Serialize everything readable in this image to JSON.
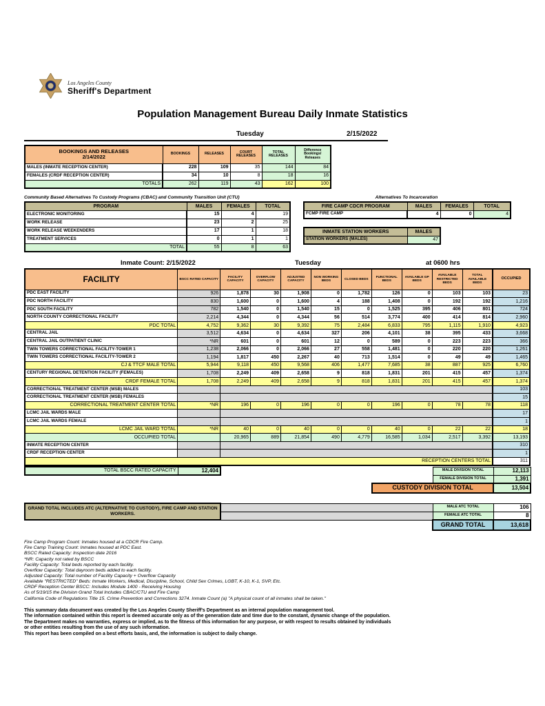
{
  "header": {
    "agency_line1": "Los Angeles County",
    "agency_line2": "Sheriff's Department",
    "title": "Population Management Bureau Daily Inmate Statistics",
    "day": "Tuesday",
    "date": "2/15/2022"
  },
  "bookings_table": {
    "title_line1": "BOOKINGS AND RELEASES",
    "title_line2": "2/14/2022",
    "columns": [
      "BOOKINGS",
      "RELEASES",
      "COURT RELEASES",
      "TOTAL RELEASES",
      "Difference Bookings/ Releases"
    ],
    "rows": [
      {
        "label": "MALES (INMATE RECEPTION CENTER)",
        "values": [
          "228",
          "109",
          "35",
          "144",
          "84"
        ]
      },
      {
        "label": "FEMALES (CRDF RECEPTION CENTER)",
        "values": [
          "34",
          "10",
          "8",
          "18",
          "16"
        ]
      }
    ],
    "totals": {
      "label": "TOTALS",
      "values": [
        "262",
        "119",
        "43",
        "162",
        "100"
      ]
    }
  },
  "cbac_table": {
    "title": "Community Based Alternatives To Custody Programs (CBAC) and Community Transition Unit (CTU)",
    "columns": [
      "PROGRAM",
      "MALES",
      "FEMALES",
      "TOTAL"
    ],
    "rows": [
      {
        "label": "ELECTRONIC MONITORING",
        "values": [
          "15",
          "4",
          "19"
        ]
      },
      {
        "label": "WORK RELEASE",
        "values": [
          "23",
          "2",
          "25"
        ]
      },
      {
        "label": "WORK RELEASE WEEKENDERS",
        "values": [
          "17",
          "1",
          "18"
        ]
      },
      {
        "label": "TREATMENT SERVICES",
        "values": [
          "0",
          "1",
          "1"
        ]
      }
    ],
    "totals": {
      "label": "TOTAL",
      "values": [
        "55",
        "8",
        "63"
      ]
    }
  },
  "alternatives": {
    "title": "Alternatives To Incarceration",
    "fire_camp": {
      "columns": [
        "FIRE CAMP CDCR PROGRAM",
        "MALES",
        "FEMALES",
        "TOTAL"
      ],
      "row_label": "FCMP FIRE CAMP",
      "values": [
        "4",
        "0",
        "4"
      ]
    },
    "station_workers": {
      "header": "INMATE STATION WORKERS",
      "column": "MALES",
      "row_label": "STATION WORKERS (MALES)",
      "value": "47"
    }
  },
  "facility_table": {
    "caption": {
      "count_label": "Inmate Count: 2/15/2022",
      "day": "Tuesday",
      "time": "at 0600 hrs"
    },
    "columns": [
      "FACILITY",
      "BSCC RATED CAPACITY",
      "FACILITY CAPACITY",
      "OVERFLOW CAPACITY",
      "ADJUSTED CAPACITY",
      "NON WORKING BEDS",
      "CLOSED BEDS",
      "FUNCTIONAL BEDS",
      "AVAILABLE GP BEDS",
      "AVAILABLE RESTRICTED BEDS",
      "TOTAL AVAILABLE BEDS",
      "OCCUPIED"
    ],
    "rows": [
      {
        "type": "data",
        "label": "PDC EAST FACILITY",
        "bscc": "926",
        "values": [
          "1,878",
          "30",
          "1,908",
          "0",
          "1,782",
          "126",
          "0",
          "103",
          "103"
        ],
        "occupied": "23"
      },
      {
        "type": "data",
        "label": "PDC NORTH FACILITY",
        "bscc": "830",
        "values": [
          "1,600",
          "0",
          "1,600",
          "4",
          "188",
          "1,408",
          "0",
          "192",
          "192"
        ],
        "occupied": "1,216"
      },
      {
        "type": "data",
        "label": "PDC SOUTH FACILITY",
        "bscc": "782",
        "values": [
          "1,540",
          "0",
          "1,540",
          "15",
          "0",
          "1,525",
          "395",
          "406",
          "801"
        ],
        "occupied": "724"
      },
      {
        "type": "data",
        "label": "NORTH COUNTY CORRECTIONAL FACILITY",
        "bscc": "2,214",
        "values": [
          "4,344",
          "0",
          "4,344",
          "56",
          "514",
          "3,774",
          "400",
          "414",
          "814"
        ],
        "occupied": "2,960"
      },
      {
        "type": "total",
        "label": "PDC TOTAL",
        "bscc": "4,752",
        "values": [
          "9,362",
          "30",
          "9,392",
          "75",
          "2,484",
          "6,833",
          "795",
          "1,115",
          "1,910"
        ],
        "occupied": "4,923"
      },
      {
        "type": "data",
        "label": "CENTRAL JAIL",
        "bscc": "3,512",
        "values": [
          "4,634",
          "0",
          "4,634",
          "327",
          "206",
          "4,101",
          "38",
          "395",
          "433"
        ],
        "occupied": "3,668"
      },
      {
        "type": "data",
        "label": "CENTRAL JAIL OUTPATIENT CLINIC",
        "bscc": "*NR",
        "values": [
          "601",
          "0",
          "601",
          "12",
          "0",
          "589",
          "0",
          "223",
          "223"
        ],
        "occupied": "366"
      },
      {
        "type": "data",
        "label": "TWIN TOWERS CORRECTIONAL FACILITY-TOWER 1",
        "bscc": "1,238",
        "values": [
          "2,066",
          "0",
          "2,066",
          "27",
          "558",
          "1,481",
          "0",
          "220",
          "220"
        ],
        "occupied": "1,261"
      },
      {
        "type": "data",
        "label": "TWIN TOWERS CORRECTIONAL FACILITY-TOWER 2",
        "bscc": "1,194",
        "values": [
          "1,817",
          "450",
          "2,267",
          "40",
          "713",
          "1,514",
          "0",
          "49",
          "49"
        ],
        "occupied": "1,465"
      },
      {
        "type": "total",
        "label": "CJ & TTCF MALE TOTAL",
        "bscc": "5,944",
        "values": [
          "9,118",
          "450",
          "9,568",
          "406",
          "1,477",
          "7,685",
          "38",
          "887",
          "925"
        ],
        "occupied": "6,760"
      },
      {
        "type": "data",
        "label": "CENTURY REGIONAL DETENTION FACILITY (FEMALES)",
        "bscc": "1,708",
        "values": [
          "2,249",
          "409",
          "2,658",
          "9",
          "818",
          "1,831",
          "201",
          "415",
          "457"
        ],
        "occupied": "1,374"
      },
      {
        "type": "total",
        "label": "CRDF FEMALE TOTAL",
        "bscc": "1,708",
        "values": [
          "2,249",
          "409",
          "2,658",
          "9",
          "818",
          "1,831",
          "201",
          "415",
          "457"
        ],
        "occupied": "1,374"
      },
      {
        "type": "grayspan",
        "label": "CORRECTIONAL TREATMENT CENTER (MSB) MALES",
        "occupied": "103"
      },
      {
        "type": "grayspan",
        "label": "CORRECTIONAL TREATMENT CENTER (MSB) FEMALES",
        "occupied": "15"
      },
      {
        "type": "total",
        "label": "CORRECTIONAL TREATMENT CENTER  TOTAL",
        "bscc": "*NR",
        "values": [
          "196",
          "0",
          "196",
          "0",
          "0",
          "196",
          "0",
          "78",
          "78"
        ],
        "occupied": "118"
      },
      {
        "type": "grayspan",
        "label": "LCMC JAIL WARDS MALE",
        "occupied": "17"
      },
      {
        "type": "grayspan",
        "label": "LCMC JAIL WARDS FEMALE",
        "occupied": "1"
      },
      {
        "type": "total",
        "label": "LCMC JAIL WARD TOTAL",
        "bscc": "*NR",
        "values": [
          "40",
          "0",
          "40",
          "0",
          "0",
          "40",
          "0",
          "22",
          "22"
        ],
        "occupied": "18"
      },
      {
        "type": "green",
        "label": "OCCUPIED TOTAL",
        "bscc": "",
        "values": [
          "20,965",
          "889",
          "21,854",
          "490",
          "4,779",
          "16,585",
          "1,034",
          "2,517",
          "3,392"
        ],
        "occupied": "13,193"
      },
      {
        "type": "grayspan",
        "label": "INMATE RECEPTION CENTER",
        "occupied": "310"
      },
      {
        "type": "grayspan",
        "label": "CRDF RECEPTION CENTER",
        "occupied": "1"
      },
      {
        "type": "fullspan",
        "label": "RECEPTION CENTERS TOTAL",
        "occupied": "311"
      }
    ],
    "bscc_total": {
      "label": "TOTAL BSCC RATED CAPACITY",
      "value": "12,404"
    }
  },
  "summary": {
    "male_division": {
      "label": "MALE DIVISION TOTAL",
      "value": "12,113"
    },
    "female_division": {
      "label": "FEMALE DIVISION TOTAL",
      "value": "1,391"
    },
    "custody_division": {
      "label": "CUSTODY DIVISION TOTAL",
      "value": "13,504"
    }
  },
  "grand_section": {
    "note": "GRAND TOTAL INCLUDES ATC (ALTERNATIVE TO CUSTODY), FIRE CAMP AND STATION WORKERS.",
    "male_atc": {
      "label": "MALE ATC TOTAL",
      "value": "106"
    },
    "female_atc": {
      "label": "FEMALE ATC TOTAL",
      "value": "8"
    },
    "grand_total": {
      "label": "GRAND TOTAL",
      "value": "13,618"
    }
  },
  "footnotes": [
    "Fire Camp Program Count: Inmates housed at a CDCR Fire Camp.",
    "Fire Camp Training Count: Inmates housed at PDC East.",
    "BSCC Rated Capacity: Inspection date 2016",
    "*NR: Capacity not rated by BSCC",
    "Facility Capacity: Total beds reported by each facility.",
    "Overflow Capacity: Total dayroom beds added to each facility.",
    "Adjusted Capacity: Total number of Facility Capacity + Overflow Capacity",
    "Available \"RESTRICTED\" Beds: Inmate Workers, Medical, Discipline, School, Child Sex Crimes, LGBT, K-10, K-1, SVP, Etc.",
    "CRDF Reception Center BSCC: Includes Module 1400 - Receiving Housing",
    "As of 5/19/15 the Division Grand Total Includes CBAC/CTU and Fire Camp",
    "California Code of Regulations Title 15. Crime Prevention and Corrections 3274. Inmate Count (a) \"A physical count of all inmates shall be taken.\""
  ],
  "disclaimer": [
    "This summary data document was created by the Los Angeles County Sheriff's Department as an internal population management tool.",
    "The information contained within this report is deemed accurate only as of the generation date and time due to the constant, dynamic change of the population.",
    "The Department makes no warranties, express or implied, as to the fitness of this information for any purpose, or with respect to results obtained by individuals",
    "or other entities resulting from the use of any such information.",
    "This report has been compiled on a best efforts basis, and, the information is subject to daily change."
  ]
}
